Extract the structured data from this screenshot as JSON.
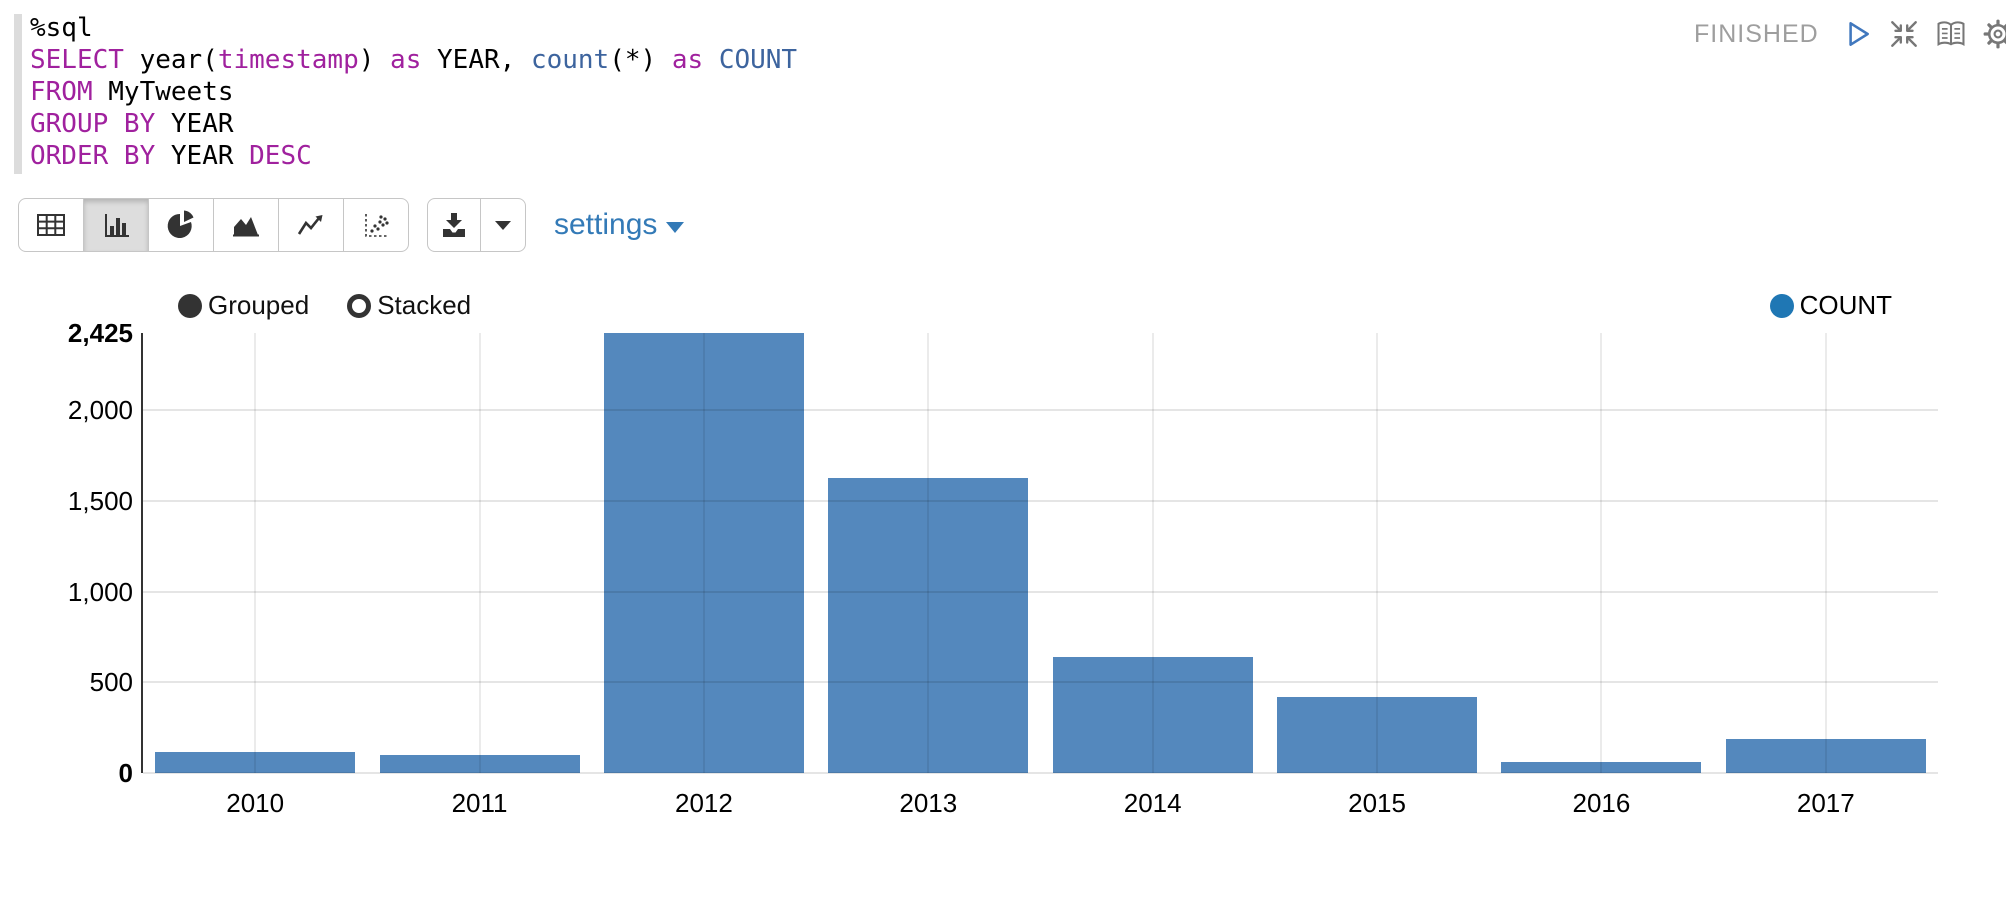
{
  "paragraph": {
    "status": "FINISHED",
    "controls": [
      {
        "name": "run-paragraph",
        "icon": "play-icon"
      },
      {
        "name": "shrink-paragraph",
        "icon": "collapse-icon"
      },
      {
        "name": "show-editor",
        "icon": "book-icon"
      },
      {
        "name": "paragraph-settings",
        "icon": "gear-icon"
      }
    ]
  },
  "editor": {
    "language": "%sql",
    "lines": [
      [
        {
          "t": "%sql",
          "c": "p"
        }
      ],
      [
        {
          "t": "SELECT",
          "c": "k"
        },
        {
          "t": " year(",
          "c": "p"
        },
        {
          "t": "timestamp",
          "c": "k"
        },
        {
          "t": ") ",
          "c": "p"
        },
        {
          "t": "as",
          "c": "k"
        },
        {
          "t": " YEAR, ",
          "c": "p"
        },
        {
          "t": "count",
          "c": "f"
        },
        {
          "t": "(*) ",
          "c": "p"
        },
        {
          "t": "as",
          "c": "k"
        },
        {
          "t": " ",
          "c": "p"
        },
        {
          "t": "COUNT",
          "c": "f"
        }
      ],
      [
        {
          "t": "FROM",
          "c": "k"
        },
        {
          "t": " MyTweets",
          "c": "p"
        }
      ],
      [
        {
          "t": "GROUP BY",
          "c": "k"
        },
        {
          "t": " YEAR",
          "c": "p"
        }
      ],
      [
        {
          "t": "ORDER BY",
          "c": "k"
        },
        {
          "t": " YEAR ",
          "c": "p"
        },
        {
          "t": "DESC",
          "c": "k"
        }
      ]
    ]
  },
  "toolbar": {
    "chart_types": [
      {
        "name": "table",
        "active": false
      },
      {
        "name": "bar-chart",
        "active": true
      },
      {
        "name": "pie-chart",
        "active": false
      },
      {
        "name": "area-chart",
        "active": false
      },
      {
        "name": "line-chart",
        "active": false
      },
      {
        "name": "scatter-chart",
        "active": false
      }
    ],
    "settings_label": "settings"
  },
  "chart_data": {
    "type": "bar",
    "title": "",
    "xlabel": "",
    "ylabel": "",
    "categories": [
      "2010",
      "2011",
      "2012",
      "2013",
      "2014",
      "2015",
      "2016",
      "2017"
    ],
    "series": [
      {
        "name": "COUNT",
        "values": [
          115,
          100,
          2425,
          1626,
          640,
          420,
          60,
          190
        ]
      }
    ],
    "ylim": [
      0,
      2425
    ],
    "yticks": [
      {
        "value": 2425,
        "label": "2,425",
        "bold": true
      },
      {
        "value": 2000,
        "label": "2,000",
        "bold": false
      },
      {
        "value": 1500,
        "label": "1,500",
        "bold": false
      },
      {
        "value": 1000,
        "label": "1,000",
        "bold": false
      },
      {
        "value": 500,
        "label": "500",
        "bold": false
      },
      {
        "value": 0,
        "label": "0",
        "bold": true
      }
    ],
    "grid_y_values": [
      500,
      1000,
      1500,
      2000
    ],
    "grid": true,
    "legend_position": "top-right",
    "legend": {
      "entries": [
        {
          "label": "COUNT",
          "color": "#1f77b4"
        }
      ]
    },
    "mode_options": [
      {
        "label": "Grouped",
        "selected": true
      },
      {
        "label": "Stacked",
        "selected": false
      }
    ]
  },
  "colors": {
    "bar": "#5488bd",
    "legend_dot": "#1f77b4",
    "keyword_purple": "#a0219e",
    "function_blue": "#3d649e",
    "link_blue": "#337ab7",
    "status_gray": "#9e9e9e",
    "icon_gray": "#777777",
    "play_blue": "#4178be"
  }
}
